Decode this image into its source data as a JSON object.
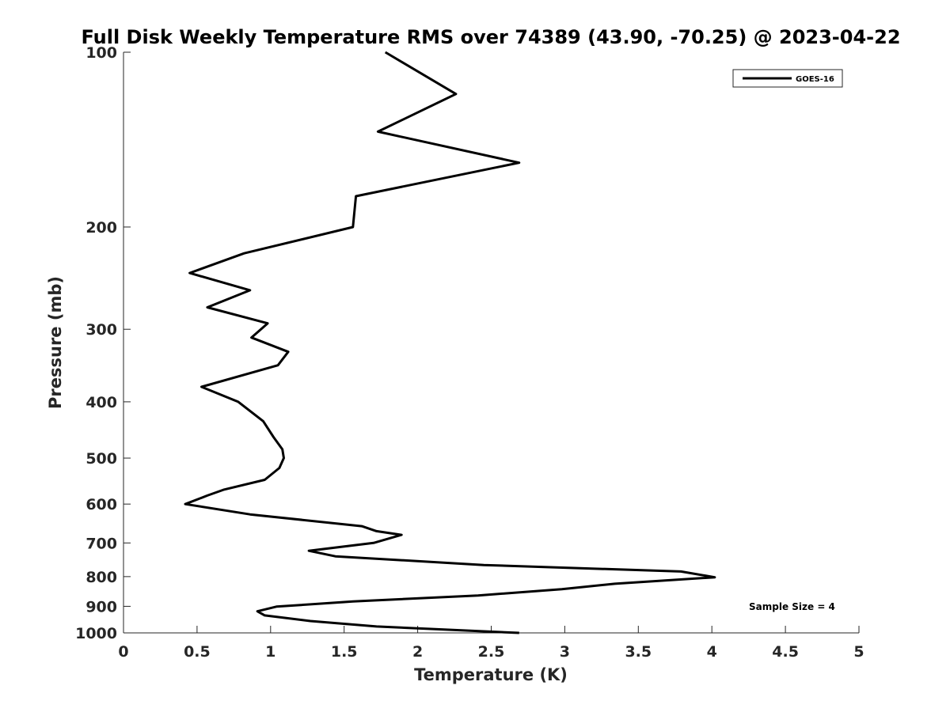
{
  "chart_data": {
    "type": "line",
    "title": "Full Disk Weekly Temperature RMS over 74389 (43.90, -70.25) @ 2023-04-22",
    "xlabel": "Temperature (K)",
    "ylabel": "Pressure (mb)",
    "xlim": [
      0,
      5
    ],
    "ylim": [
      100,
      1000
    ],
    "y_scale": "log",
    "y_reversed": true,
    "x_ticks": [
      0,
      0.5,
      1,
      1.5,
      2,
      2.5,
      3,
      3.5,
      4,
      4.5,
      5
    ],
    "x_tick_labels": [
      "0",
      "0.5",
      "1",
      "1.5",
      "2",
      "2.5",
      "3",
      "3.5",
      "4",
      "4.5",
      "5"
    ],
    "y_ticks": [
      100,
      200,
      300,
      400,
      500,
      600,
      700,
      800,
      900,
      1000
    ],
    "y_tick_labels": [
      "100",
      "200",
      "300",
      "400",
      "500",
      "600",
      "700",
      "800",
      "900",
      "1000"
    ],
    "grid": false,
    "legend_position": "top-right",
    "series": [
      {
        "name": "GOES-16",
        "color": "#000000",
        "x": [
          1.78,
          2.26,
          1.73,
          2.69,
          1.58,
          1.56,
          0.82,
          0.45,
          0.86,
          0.57,
          0.98,
          0.87,
          1.12,
          1.05,
          0.53,
          0.78,
          0.95,
          1.02,
          1.08,
          1.09,
          1.06,
          0.96,
          0.68,
          0.57,
          0.42,
          0.86,
          1.62,
          1.72,
          1.89,
          1.7,
          1.26,
          1.44,
          2.45,
          3.79,
          4.02,
          3.34,
          2.98,
          2.41,
          1.56,
          1.04,
          0.91,
          0.96,
          1.27,
          1.72,
          2.69
        ],
        "y": [
          100,
          118,
          137,
          155,
          177,
          200,
          222,
          240,
          257,
          275,
          293,
          310,
          328,
          346,
          377,
          400,
          432,
          460,
          483,
          500,
          520,
          545,
          567,
          580,
          600,
          625,
          655,
          668,
          678,
          700,
          722,
          738,
          764,
          784,
          802,
          823,
          841,
          862,
          883,
          901,
          918,
          933,
          954,
          975,
          1000
        ]
      }
    ],
    "annotations": [
      {
        "text": "Sample Size = 4"
      }
    ]
  }
}
